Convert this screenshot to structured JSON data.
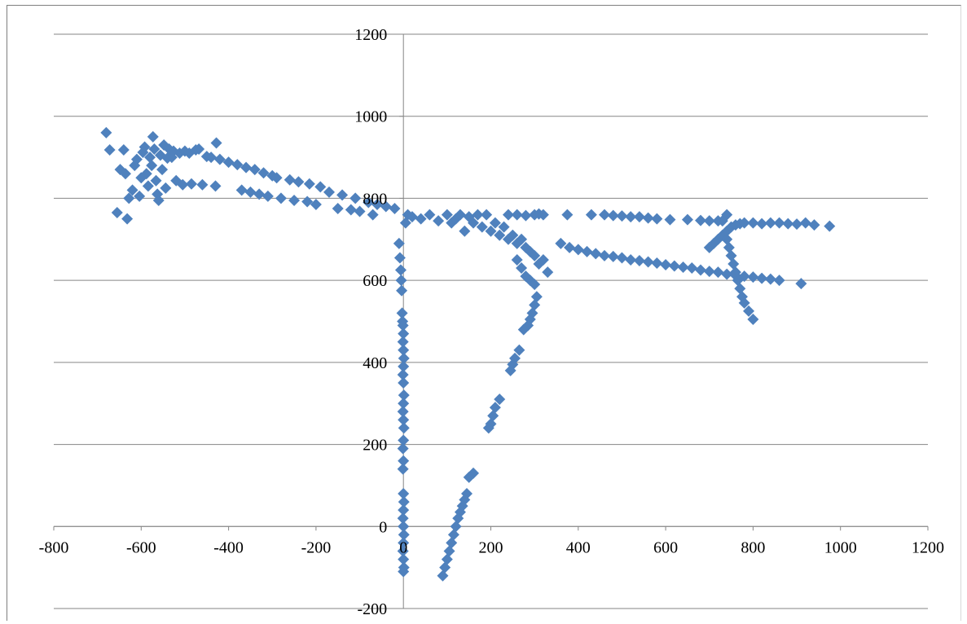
{
  "chart_data": {
    "type": "scatter",
    "title": "",
    "xlabel": "",
    "ylabel": "",
    "xlim": [
      -800,
      1200
    ],
    "ylim": [
      -200,
      1200
    ],
    "x_ticks": [
      -800,
      -600,
      -400,
      -200,
      0,
      200,
      400,
      600,
      800,
      1000,
      1200
    ],
    "y_ticks": [
      -200,
      0,
      200,
      400,
      600,
      800,
      1000,
      1200
    ],
    "x_tick_labels": [
      "-800",
      "-600",
      "-400",
      "-200",
      "0",
      "200",
      "400",
      "600",
      "800",
      "1000",
      "1200"
    ],
    "y_tick_labels": [
      "-200",
      "0",
      "200",
      "400",
      "600",
      "800",
      "1000",
      "1200"
    ],
    "grid": "horizontal",
    "legend": "none",
    "marker": "diamond",
    "marker_color": "#4f81bd",
    "series": [
      {
        "points": [
          [
            -680,
            960
          ],
          [
            -672,
            918
          ],
          [
            -655,
            765
          ],
          [
            -648,
            870
          ],
          [
            -640,
            918
          ],
          [
            -636,
            860
          ],
          [
            -632,
            750
          ],
          [
            -628,
            800
          ],
          [
            -620,
            820
          ],
          [
            -615,
            880
          ],
          [
            -610,
            895
          ],
          [
            -604,
            805
          ],
          [
            -600,
            850
          ],
          [
            -596,
            912
          ],
          [
            -592,
            925
          ],
          [
            -588,
            860
          ],
          [
            -584,
            830
          ],
          [
            -580,
            900
          ],
          [
            -576,
            880
          ],
          [
            -573,
            950
          ],
          [
            -570,
            920
          ],
          [
            -566,
            843
          ],
          [
            -563,
            810
          ],
          [
            -560,
            795
          ],
          [
            -556,
            905
          ],
          [
            -552,
            870
          ],
          [
            -548,
            930
          ],
          [
            -544,
            825
          ],
          [
            -540,
            898
          ],
          [
            -536,
            920
          ],
          [
            -530,
            900
          ],
          [
            -526,
            915
          ],
          [
            -520,
            843
          ],
          [
            -512,
            910
          ],
          [
            -505,
            833
          ],
          [
            -500,
            915
          ],
          [
            -490,
            910
          ],
          [
            -485,
            835
          ],
          [
            -475,
            918
          ],
          [
            -468,
            920
          ],
          [
            -460,
            833
          ],
          [
            -450,
            902
          ],
          [
            -440,
            900
          ],
          [
            -430,
            830
          ],
          [
            -428,
            935
          ],
          [
            -420,
            895
          ],
          [
            -400,
            888
          ],
          [
            -380,
            882
          ],
          [
            -370,
            820
          ],
          [
            -360,
            875
          ],
          [
            -350,
            815
          ],
          [
            -340,
            870
          ],
          [
            -330,
            810
          ],
          [
            -320,
            862
          ],
          [
            -310,
            805
          ],
          [
            -300,
            855
          ],
          [
            -290,
            850
          ],
          [
            -280,
            800
          ],
          [
            -260,
            845
          ],
          [
            -250,
            795
          ],
          [
            -240,
            840
          ],
          [
            -220,
            792
          ],
          [
            -215,
            835
          ],
          [
            -200,
            785
          ],
          [
            -190,
            828
          ],
          [
            -170,
            815
          ],
          [
            -150,
            775
          ],
          [
            -140,
            808
          ],
          [
            -120,
            772
          ],
          [
            -110,
            800
          ],
          [
            -100,
            768
          ],
          [
            -80,
            790
          ],
          [
            -70,
            760
          ],
          [
            -60,
            785
          ],
          [
            -40,
            780
          ],
          [
            -20,
            775
          ],
          [
            -10,
            690
          ],
          [
            -8,
            655
          ],
          [
            -6,
            625
          ],
          [
            -5,
            600
          ],
          [
            -4,
            575
          ],
          [
            -3,
            520
          ],
          [
            -2,
            500
          ],
          [
            -1,
            490
          ],
          [
            0,
            470
          ],
          [
            -1,
            450
          ],
          [
            0,
            430
          ],
          [
            1,
            410
          ],
          [
            0,
            390
          ],
          [
            -1,
            370
          ],
          [
            0,
            350
          ],
          [
            1,
            320
          ],
          [
            0,
            300
          ],
          [
            -1,
            280
          ],
          [
            0,
            260
          ],
          [
            1,
            240
          ],
          [
            0,
            210
          ],
          [
            -1,
            190
          ],
          [
            0,
            160
          ],
          [
            -1,
            140
          ],
          [
            0,
            80
          ],
          [
            1,
            60
          ],
          [
            0,
            40
          ],
          [
            -1,
            20
          ],
          [
            0,
            0
          ],
          [
            1,
            -20
          ],
          [
            0,
            -40
          ],
          [
            -1,
            -60
          ],
          [
            0,
            -80
          ],
          [
            1,
            -100
          ],
          [
            0,
            -110
          ],
          [
            5,
            740
          ],
          [
            10,
            760
          ],
          [
            20,
            755
          ],
          [
            40,
            750
          ],
          [
            60,
            760
          ],
          [
            80,
            745
          ],
          [
            100,
            760
          ],
          [
            110,
            740
          ],
          [
            120,
            750
          ],
          [
            130,
            760
          ],
          [
            140,
            720
          ],
          [
            150,
            755
          ],
          [
            160,
            740
          ],
          [
            170,
            760
          ],
          [
            180,
            730
          ],
          [
            190,
            760
          ],
          [
            200,
            720
          ],
          [
            210,
            740
          ],
          [
            220,
            710
          ],
          [
            230,
            730
          ],
          [
            240,
            700
          ],
          [
            250,
            710
          ],
          [
            260,
            690
          ],
          [
            270,
            700
          ],
          [
            280,
            680
          ],
          [
            290,
            670
          ],
          [
            300,
            660
          ],
          [
            310,
            640
          ],
          [
            320,
            650
          ],
          [
            330,
            620
          ],
          [
            240,
            760
          ],
          [
            260,
            760
          ],
          [
            280,
            758
          ],
          [
            300,
            760
          ],
          [
            310,
            762
          ],
          [
            320,
            760
          ],
          [
            375,
            760
          ],
          [
            430,
            760
          ],
          [
            460,
            760
          ],
          [
            480,
            758
          ],
          [
            500,
            757
          ],
          [
            520,
            755
          ],
          [
            540,
            755
          ],
          [
            560,
            752
          ],
          [
            580,
            750
          ],
          [
            610,
            748
          ],
          [
            650,
            748
          ],
          [
            680,
            746
          ],
          [
            700,
            745
          ],
          [
            720,
            745
          ],
          [
            360,
            690
          ],
          [
            380,
            680
          ],
          [
            400,
            675
          ],
          [
            420,
            670
          ],
          [
            440,
            665
          ],
          [
            460,
            660
          ],
          [
            480,
            658
          ],
          [
            500,
            655
          ],
          [
            520,
            650
          ],
          [
            540,
            648
          ],
          [
            560,
            645
          ],
          [
            580,
            642
          ],
          [
            600,
            638
          ],
          [
            620,
            635
          ],
          [
            640,
            632
          ],
          [
            660,
            630
          ],
          [
            680,
            625
          ],
          [
            700,
            622
          ],
          [
            720,
            620
          ],
          [
            740,
            615
          ],
          [
            760,
            612
          ],
          [
            780,
            610
          ],
          [
            800,
            608
          ],
          [
            820,
            605
          ],
          [
            840,
            603
          ],
          [
            860,
            600
          ],
          [
            910,
            592
          ],
          [
            700,
            680
          ],
          [
            710,
            690
          ],
          [
            720,
            700
          ],
          [
            730,
            710
          ],
          [
            740,
            720
          ],
          [
            750,
            730
          ],
          [
            760,
            735
          ],
          [
            770,
            738
          ],
          [
            780,
            740
          ],
          [
            800,
            740
          ],
          [
            820,
            738
          ],
          [
            840,
            740
          ],
          [
            860,
            740
          ],
          [
            880,
            738
          ],
          [
            900,
            737
          ],
          [
            920,
            740
          ],
          [
            940,
            735
          ],
          [
            975,
            732
          ],
          [
            740,
            760
          ],
          [
            730,
            745
          ],
          [
            740,
            700
          ],
          [
            745,
            680
          ],
          [
            750,
            660
          ],
          [
            755,
            640
          ],
          [
            760,
            620
          ],
          [
            765,
            600
          ],
          [
            770,
            580
          ],
          [
            775,
            560
          ],
          [
            780,
            545
          ],
          [
            790,
            525
          ],
          [
            800,
            505
          ],
          [
            260,
            650
          ],
          [
            270,
            630
          ],
          [
            280,
            610
          ],
          [
            290,
            600
          ],
          [
            300,
            590
          ],
          [
            305,
            560
          ],
          [
            300,
            540
          ],
          [
            295,
            520
          ],
          [
            290,
            505
          ],
          [
            285,
            490
          ],
          [
            275,
            480
          ],
          [
            265,
            430
          ],
          [
            255,
            410
          ],
          [
            250,
            395
          ],
          [
            245,
            380
          ],
          [
            220,
            310
          ],
          [
            210,
            290
          ],
          [
            205,
            270
          ],
          [
            200,
            250
          ],
          [
            195,
            240
          ],
          [
            160,
            130
          ],
          [
            150,
            120
          ],
          [
            145,
            80
          ],
          [
            140,
            65
          ],
          [
            135,
            50
          ],
          [
            130,
            35
          ],
          [
            125,
            20
          ],
          [
            120,
            0
          ],
          [
            115,
            -20
          ],
          [
            110,
            -40
          ],
          [
            105,
            -60
          ],
          [
            100,
            -80
          ],
          [
            95,
            -100
          ],
          [
            90,
            -120
          ]
        ]
      }
    ]
  }
}
